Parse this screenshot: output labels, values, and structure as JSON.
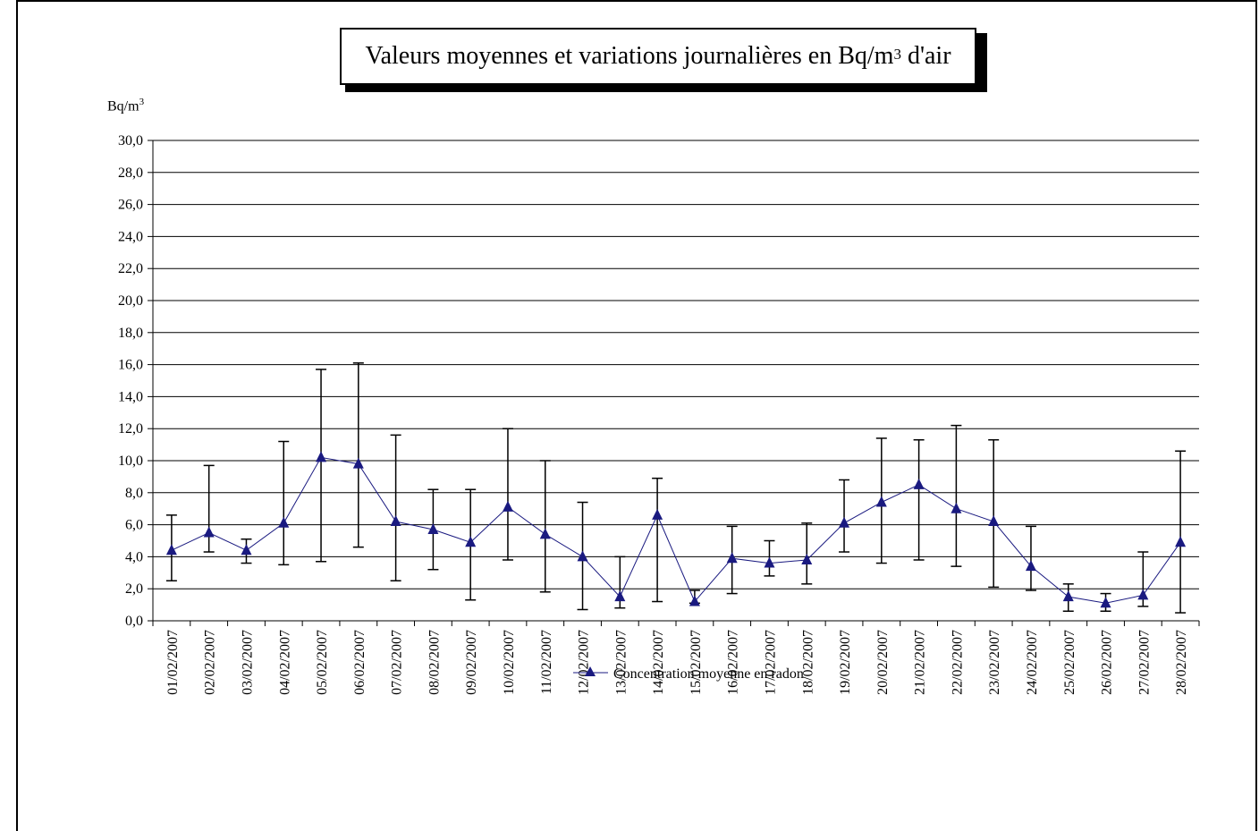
{
  "chart_data": {
    "type": "line",
    "title": "Valeurs moyennes et variations journalières en Bq/m3 d'air",
    "title_main": "Valeurs moyennes et variations journalières en Bq/m",
    "title_sup": "3",
    "title_tail": " d'air",
    "ylabel": "Bq/m3",
    "ylabel_main": "Bq/m",
    "ylabel_sup": "3",
    "xlabel": "",
    "ylim": [
      0,
      30
    ],
    "ytick_step": 2,
    "yticks": [
      "0,0",
      "2,0",
      "4,0",
      "6,0",
      "8,0",
      "10,0",
      "12,0",
      "14,0",
      "16,0",
      "18,0",
      "20,0",
      "22,0",
      "24,0",
      "26,0",
      "28,0",
      "30,0"
    ],
    "grid": true,
    "legend": "bottom-center",
    "categories": [
      "01/02/2007",
      "02/02/2007",
      "03/02/2007",
      "04/02/2007",
      "05/02/2007",
      "06/02/2007",
      "07/02/2007",
      "08/02/2007",
      "09/02/2007",
      "10/02/2007",
      "11/02/2007",
      "12/02/2007",
      "13/02/2007",
      "14/02/2007",
      "15/02/2007",
      "16/02/2007",
      "17/02/2007",
      "18/02/2007",
      "19/02/2007",
      "20/02/2007",
      "21/02/2007",
      "22/02/2007",
      "23/02/2007",
      "24/02/2007",
      "25/02/2007",
      "26/02/2007",
      "27/02/2007",
      "28/02/2007"
    ],
    "series": [
      {
        "name": "Concentration moyenne en radon",
        "color": "#1a1a80",
        "marker": "triangle",
        "values": [
          4.4,
          5.5,
          4.4,
          6.1,
          10.2,
          9.8,
          6.2,
          5.7,
          4.9,
          7.1,
          5.4,
          4.0,
          1.5,
          6.6,
          1.2,
          3.9,
          3.6,
          3.8,
          6.1,
          7.4,
          8.5,
          7.0,
          6.2,
          3.4,
          1.5,
          1.1,
          1.6,
          4.9
        ],
        "error_low": [
          2.5,
          4.3,
          3.6,
          3.5,
          3.7,
          4.6,
          2.5,
          3.2,
          1.3,
          3.8,
          1.8,
          0.7,
          0.8,
          1.2,
          1.1,
          1.7,
          2.8,
          2.3,
          4.3,
          3.6,
          3.8,
          3.4,
          2.1,
          1.9,
          0.6,
          0.6,
          0.9,
          0.5
        ],
        "error_high": [
          6.6,
          9.7,
          5.1,
          11.2,
          15.7,
          16.1,
          11.6,
          8.2,
          8.2,
          12.0,
          10.0,
          7.4,
          4.0,
          8.9,
          1.9,
          5.9,
          5.0,
          6.1,
          8.8,
          11.4,
          11.3,
          12.2,
          11.3,
          5.9,
          2.3,
          1.7,
          4.3,
          10.6
        ]
      }
    ]
  }
}
